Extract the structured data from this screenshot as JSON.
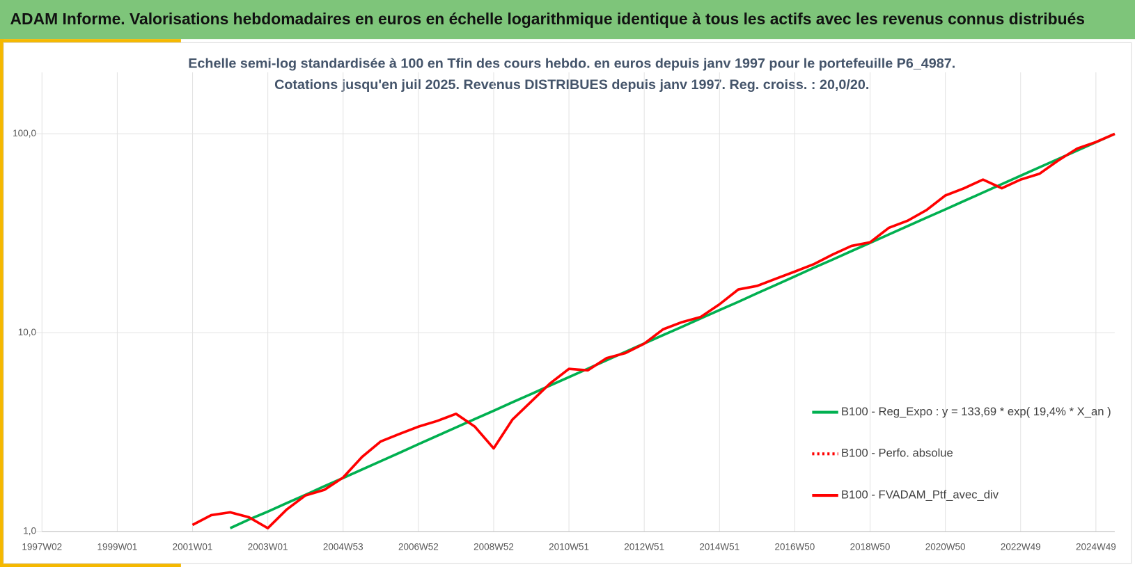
{
  "header": {
    "title": "ADAM Informe. Valorisations hebdomadaires en euros en échelle logarithmique identique à tous les actifs avec les revenus connus distribués"
  },
  "chart_data": {
    "type": "line",
    "subtitle": [
      "Echelle semi-log standardisée  à 100 en Tfin des cours hebdo.  en euros depuis janv 1997 pour  le portefeuille  P6_4987.",
      "Cotations  jusqu'en juil 2025. Revenus DISTRIBUES depuis janv 1997. Reg. croiss. : 20,0/20."
    ],
    "categories": [
      "1997W02",
      null,
      null,
      null,
      "1999W01",
      null,
      null,
      null,
      "2001W01",
      null,
      null,
      null,
      "2003W01",
      null,
      null,
      null,
      "2004W53",
      null,
      null,
      null,
      "2006W52",
      null,
      null,
      null,
      "2008W52",
      null,
      null,
      null,
      "2010W51",
      null,
      null,
      null,
      "2012W51",
      null,
      null,
      null,
      "2014W51",
      null,
      null,
      null,
      "2016W50",
      null,
      null,
      null,
      "2018W50",
      null,
      null,
      null,
      "2020W50",
      null,
      null,
      null,
      "2022W49",
      null,
      null,
      null,
      "2024W49",
      null
    ],
    "log_scale": true,
    "ylim": [
      1,
      204
    ],
    "yticks": [
      {
        "value": 1,
        "label": "1,0"
      },
      {
        "value": 10,
        "label": "10,0"
      },
      {
        "value": 100,
        "label": "100,0"
      }
    ],
    "grid": true,
    "legend_position": "right",
    "series": [
      {
        "name": "B100 - Reg_Expo : y = 133,69 * exp( 19,4% *  X_an )",
        "color": "#00b050",
        "dash": "solid",
        "values": [
          null,
          null,
          null,
          null,
          null,
          null,
          null,
          null,
          null,
          null,
          1.04,
          1.15,
          1.26,
          1.39,
          1.53,
          1.69,
          1.86,
          2.05,
          2.26,
          2.49,
          2.75,
          3.03,
          3.34,
          3.68,
          4.05,
          4.47,
          4.92,
          5.43,
          5.98,
          6.59,
          7.27,
          8.01,
          8.83,
          9.73,
          10.7,
          11.8,
          13.0,
          14.3,
          15.8,
          17.4,
          19.2,
          21.2,
          23.3,
          25.7,
          28.3,
          31.2,
          34.4,
          37.9,
          41.7,
          46.0,
          50.7,
          55.9,
          61.6,
          67.9,
          74.8,
          82.4,
          90.8,
          100
        ]
      },
      {
        "name": "B100 - Perfo. absolue",
        "color": "#ff0000",
        "dash": "dotted",
        "values": [
          null,
          null,
          null,
          null,
          null,
          null,
          null,
          null,
          1.08,
          1.21,
          1.25,
          1.18,
          1.04,
          1.29,
          1.52,
          1.62,
          1.87,
          2.37,
          2.84,
          3.1,
          3.37,
          3.6,
          3.91,
          3.37,
          2.62,
          3.66,
          4.51,
          5.56,
          6.58,
          6.47,
          7.45,
          7.9,
          8.81,
          10.4,
          11.3,
          12.0,
          13.9,
          16.5,
          17.2,
          18.7,
          20.3,
          22.1,
          24.7,
          27.3,
          28.5,
          33.7,
          36.6,
          41.4,
          49.0,
          53.3,
          58.9,
          53.3,
          58.9,
          63.0,
          73.5,
          84.3,
          91.0,
          100
        ]
      },
      {
        "name": "B100 - FVADAM_Ptf_avec_div",
        "color": "#ff0000",
        "dash": "solid",
        "values": [
          null,
          null,
          null,
          null,
          null,
          null,
          null,
          null,
          1.08,
          1.21,
          1.25,
          1.18,
          1.04,
          1.29,
          1.52,
          1.62,
          1.87,
          2.37,
          2.84,
          3.1,
          3.37,
          3.6,
          3.91,
          3.37,
          2.62,
          3.66,
          4.51,
          5.56,
          6.58,
          6.47,
          7.45,
          7.9,
          8.81,
          10.4,
          11.3,
          12.0,
          13.9,
          16.5,
          17.2,
          18.7,
          20.3,
          22.1,
          24.7,
          27.3,
          28.5,
          33.7,
          36.6,
          41.4,
          49.0,
          53.3,
          58.9,
          53.3,
          58.9,
          63.0,
          73.5,
          84.3,
          91.0,
          100
        ]
      }
    ]
  }
}
